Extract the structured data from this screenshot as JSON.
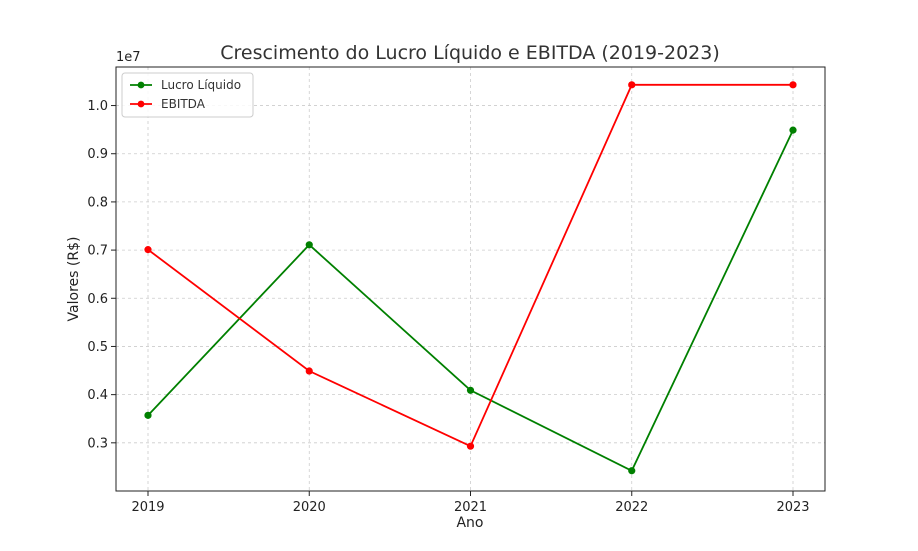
{
  "chart_data": {
    "type": "line",
    "title": "Crescimento do Lucro Líquido e EBITDA (2019-2023)",
    "xlabel": "Ano",
    "ylabel": "Valores (R$)",
    "y_offset_label": "1e7",
    "categories": [
      "2019",
      "2020",
      "2021",
      "2022",
      "2023"
    ],
    "y_ticks": [
      "0.3",
      "0.4",
      "0.5",
      "0.6",
      "0.7",
      "0.8",
      "0.9",
      "1.0"
    ],
    "ylim": [
      0.2,
      1.08
    ],
    "y_scale": 10000000,
    "grid": true,
    "legend_position": "top-left",
    "series": [
      {
        "name": "Lucro Líquido",
        "color": "#008000",
        "values": [
          0.357,
          0.711,
          0.409,
          0.242,
          0.949
        ]
      },
      {
        "name": "EBITDA",
        "color": "#ff0000",
        "values": [
          0.701,
          0.449,
          0.293,
          1.043,
          1.043
        ]
      }
    ]
  }
}
